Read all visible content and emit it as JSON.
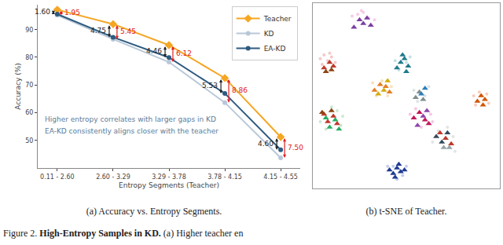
{
  "chart_data": [
    {
      "type": "line",
      "title": "(a) Accuracy vs. Entropy Segments.",
      "x_label": "Entropy Segments (Teacher)",
      "y_label": "Accuracy (%)",
      "categories": [
        "0.11 - 2.60",
        "2.60 - 3.29",
        "3.29 - 3.78",
        "3.78 - 4.15",
        "4.15 - 4.55"
      ],
      "series": [
        {
          "name": "Teacher",
          "color": "#f5a623",
          "marker": "diamond",
          "values": [
            97.2,
            92.0,
            84.4,
            72.5,
            51.2
          ]
        },
        {
          "name": "KD",
          "color": "#b9c8d8",
          "marker": "circle",
          "values": [
            95.25,
            86.55,
            78.28,
            63.64,
            43.7
          ]
        },
        {
          "name": "EA-KD",
          "color": "#2e5b80",
          "marker": "circle",
          "values": [
            95.6,
            87.25,
            79.94,
            66.97,
            46.6
          ]
        }
      ],
      "ylim": [
        40,
        99
      ],
      "yticks": [
        50,
        60,
        70,
        80,
        90
      ],
      "grid": false,
      "legend": "top-right",
      "annotations": [
        {
          "text": "1.60",
          "category": "0.11 - 2.60",
          "from": "Teacher",
          "to": "EA-KD",
          "color": "#222222"
        },
        {
          "text": "1.95",
          "category": "0.11 - 2.60",
          "from": "Teacher",
          "to": "KD",
          "color": "#e02020"
        },
        {
          "text": "4.75",
          "category": "2.60 - 3.29",
          "from": "Teacher",
          "to": "EA-KD",
          "color": "#222222"
        },
        {
          "text": "5.45",
          "category": "2.60 - 3.29",
          "from": "Teacher",
          "to": "KD",
          "color": "#e02020"
        },
        {
          "text": "4.46",
          "category": "3.29 - 3.78",
          "from": "Teacher",
          "to": "EA-KD",
          "color": "#222222"
        },
        {
          "text": "6.12",
          "category": "3.29 - 3.78",
          "from": "Teacher",
          "to": "KD",
          "color": "#e02020"
        },
        {
          "text": "5.53",
          "category": "3.78 - 4.15",
          "from": "Teacher",
          "to": "EA-KD",
          "color": "#222222"
        },
        {
          "text": "8.86",
          "category": "3.78 - 4.15",
          "from": "Teacher",
          "to": "KD",
          "color": "#e02020"
        },
        {
          "text": "4.60",
          "category": "4.15 - 4.55",
          "from": "Teacher",
          "to": "EA-KD",
          "color": "#222222"
        },
        {
          "text": "7.50",
          "category": "4.15 - 4.55",
          "from": "Teacher",
          "to": "KD",
          "color": "#e02020"
        },
        {
          "text": "Higher entropy correlates with larger gaps in KD",
          "color": "#5b7c99"
        },
        {
          "text": "EA-KD consistently aligns closer with the teacher",
          "color": "#5b7c99"
        }
      ]
    },
    {
      "type": "scatter",
      "title": "(b) t-SNE of Teacher.",
      "xlim": [
        0,
        100
      ],
      "ylim": [
        0,
        100
      ],
      "tick_labels": false,
      "grid": false,
      "series": [
        {
          "color": "#f0b8dc",
          "marker": "circle",
          "x": [
            21,
            24,
            27,
            30,
            33,
            26
          ],
          "y": [
            93,
            94,
            95,
            92,
            91,
            96
          ]
        },
        {
          "color": "#7b3fa0",
          "marker": "triangle-up",
          "x": [
            22,
            25,
            27,
            29,
            31
          ],
          "y": [
            87,
            91,
            89,
            92,
            88
          ]
        },
        {
          "color": "#f0b0b0",
          "marker": "circle",
          "x": [
            4,
            6,
            8,
            10,
            12,
            5,
            9
          ],
          "y": [
            70,
            72,
            69,
            71,
            68,
            67,
            73
          ]
        },
        {
          "color": "#c0392b",
          "marker": "triangle-up",
          "x": [
            6,
            9,
            11
          ],
          "y": [
            65,
            68,
            66
          ]
        },
        {
          "color": "#8b4513",
          "marker": "triangle-up",
          "x": [
            7,
            10
          ],
          "y": [
            63,
            64
          ]
        },
        {
          "color": "#a8d5dc",
          "marker": "circle",
          "x": [
            44,
            46,
            50,
            52
          ],
          "y": [
            69,
            64,
            68,
            71
          ]
        },
        {
          "color": "#1f7a8c",
          "marker": "triangle-up",
          "x": [
            45,
            47,
            49,
            51,
            48,
            50
          ],
          "y": [
            65,
            68,
            70,
            66,
            72,
            63
          ]
        },
        {
          "color": "#f5d5a0",
          "marker": "circle",
          "x": [
            32,
            34,
            37,
            40,
            42
          ],
          "y": [
            57,
            50,
            58,
            50,
            55
          ]
        },
        {
          "color": "#e67e22",
          "marker": "triangle-up",
          "x": [
            33,
            36,
            39,
            41
          ],
          "y": [
            53,
            56,
            55,
            52
          ]
        },
        {
          "color": "#d4ac0d",
          "marker": "triangle-up",
          "x": [
            35,
            38,
            40
          ],
          "y": [
            51,
            53,
            58
          ]
        },
        {
          "color": "#cfd8dc",
          "marker": "circle",
          "x": [
            54,
            56,
            60,
            62
          ],
          "y": [
            53,
            47,
            50,
            55
          ]
        },
        {
          "color": "#7f8c8d",
          "marker": "triangle-up",
          "x": [
            55,
            57,
            59
          ],
          "y": [
            49,
            52,
            48
          ]
        },
        {
          "color": "#2980b9",
          "marker": "triangle-up",
          "x": [
            58,
            60
          ],
          "y": [
            51,
            54
          ]
        },
        {
          "color": "#f5b7a0",
          "marker": "circle",
          "x": [
            86,
            89,
            93,
            94,
            87
          ],
          "y": [
            50,
            52,
            51,
            46,
            45
          ]
        },
        {
          "color": "#d35400",
          "marker": "triangle-up",
          "x": [
            88,
            90,
            92,
            91
          ],
          "y": [
            47,
            50,
            48,
            45
          ]
        },
        {
          "color": "#b8e0c0",
          "marker": "circle",
          "x": [
            4,
            7,
            10,
            13,
            15,
            16
          ],
          "y": [
            36,
            32,
            44,
            42,
            34,
            39
          ]
        },
        {
          "color": "#c0392b",
          "marker": "triangle-up",
          "x": [
            6,
            8,
            11,
            13
          ],
          "y": [
            40,
            36,
            39,
            35
          ]
        },
        {
          "color": "#27ae60",
          "marker": "triangle-up",
          "x": [
            9,
            12,
            14,
            7
          ],
          "y": [
            33,
            37,
            32,
            38
          ]
        },
        {
          "color": "#8b4513",
          "marker": "triangle-up",
          "x": [
            10,
            5
          ],
          "y": [
            42,
            41
          ]
        },
        {
          "color": "#f2b0d6",
          "marker": "circle",
          "x": [
            52,
            55,
            58,
            63,
            64
          ],
          "y": [
            40,
            43,
            33,
            40,
            36
          ]
        },
        {
          "color": "#c2185b",
          "marker": "triangle-up",
          "x": [
            54,
            57,
            60,
            62
          ],
          "y": [
            38,
            41,
            37,
            35
          ]
        },
        {
          "color": "#8e44ad",
          "marker": "triangle-up",
          "x": [
            56,
            59,
            61
          ],
          "y": [
            34,
            39,
            42
          ]
        },
        {
          "color": "#d5d8dc",
          "marker": "circle",
          "x": [
            64,
            67,
            72,
            75,
            76
          ],
          "y": [
            25,
            31,
            33,
            28,
            20
          ]
        },
        {
          "color": "#34495e",
          "marker": "triangle-up",
          "x": [
            66,
            69,
            72
          ],
          "y": [
            28,
            25,
            30
          ]
        },
        {
          "color": "#c0392b",
          "marker": "triangle-up",
          "x": [
            68,
            71,
            74
          ],
          "y": [
            30,
            27,
            24
          ]
        },
        {
          "color": "#95a5a6",
          "marker": "triangle-up",
          "x": [
            73,
            70
          ],
          "y": [
            22,
            22
          ]
        },
        {
          "color": "#a9b8e6",
          "marker": "circle",
          "x": [
            40,
            43,
            48,
            50,
            45
          ],
          "y": [
            12,
            12,
            7,
            12,
            5
          ]
        },
        {
          "color": "#1f3a93",
          "marker": "triangle-up",
          "x": [
            41,
            43,
            45,
            47,
            49,
            44,
            46
          ],
          "y": [
            10,
            8,
            11,
            9,
            10,
            6,
            13
          ]
        }
      ]
    }
  ],
  "caption": {
    "label": "Figure 2.",
    "bold": "High-Entropy Samples in KD.",
    "text": "(a) Higher teacher en"
  }
}
